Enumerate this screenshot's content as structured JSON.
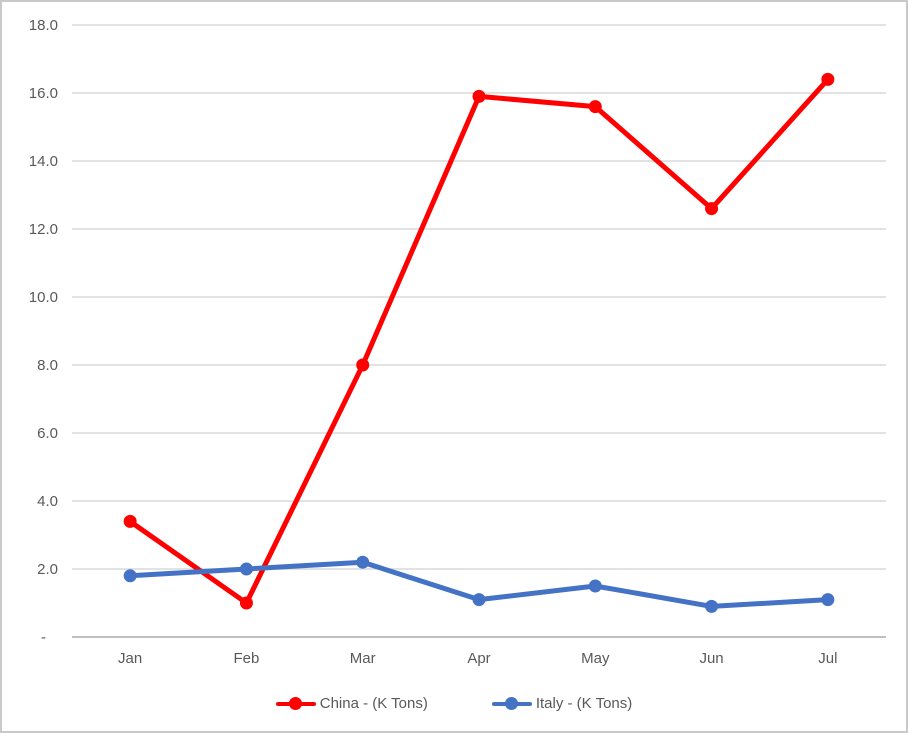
{
  "chart_data": {
    "type": "line",
    "title": "",
    "xlabel": "",
    "ylabel": "",
    "categories": [
      "Jan",
      "Feb",
      "Mar",
      "Apr",
      "May",
      "Jun",
      "Jul"
    ],
    "series": [
      {
        "name": "China - (K Tons)",
        "color": "#FF0000",
        "values": [
          3.4,
          1.0,
          8.0,
          15.9,
          15.6,
          12.6,
          16.4
        ]
      },
      {
        "name": "Italy - (K Tons)",
        "color": "#4472C4",
        "values": [
          1.8,
          2.0,
          2.2,
          1.1,
          1.5,
          0.9,
          1.1
        ]
      }
    ],
    "ylim": [
      0,
      18
    ],
    "y_ticks": [
      {
        "value": 0,
        "label": "-"
      },
      {
        "value": 2,
        "label": "2.0"
      },
      {
        "value": 4,
        "label": "4.0"
      },
      {
        "value": 6,
        "label": "6.0"
      },
      {
        "value": 8,
        "label": "8.0"
      },
      {
        "value": 10,
        "label": "10.0"
      },
      {
        "value": 12,
        "label": "12.0"
      },
      {
        "value": 14,
        "label": "14.0"
      },
      {
        "value": 16,
        "label": "16.0"
      },
      {
        "value": 18,
        "label": "18.0"
      }
    ],
    "grid": true,
    "legend_position": "bottom"
  },
  "colors": {
    "background": "#FFFFFF",
    "frame_border": "#C9C9C9",
    "gridline": "#D9D9D9",
    "axis_line": "#BFBFBF",
    "tick_label": "#595959",
    "legend_label": "#595959"
  }
}
